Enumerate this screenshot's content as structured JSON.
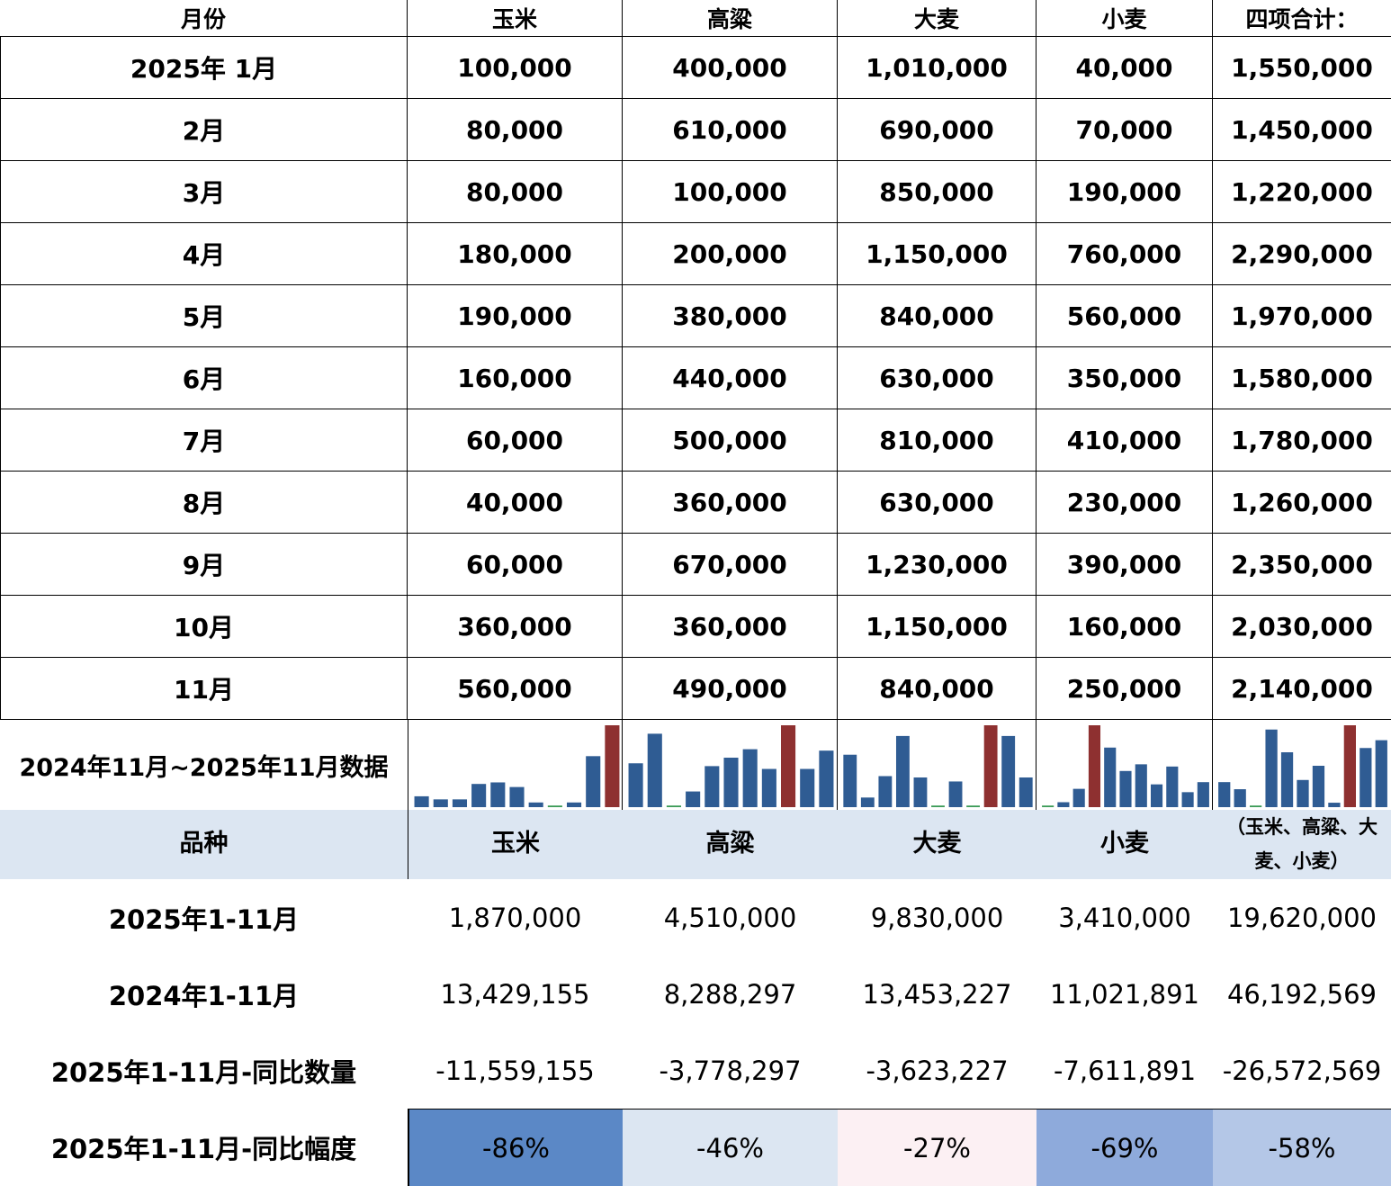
{
  "table": {
    "header": [
      "月份",
      "玉米",
      "高粱",
      "大麦",
      "小麦",
      "四项合计："
    ],
    "rows": [
      [
        "2025年 1月",
        "100,000",
        "400,000",
        "1,010,000",
        "40,000",
        "1,550,000"
      ],
      [
        "2月",
        "80,000",
        "610,000",
        "690,000",
        "70,000",
        "1,450,000"
      ],
      [
        "3月",
        "80,000",
        "100,000",
        "850,000",
        "190,000",
        "1,220,000"
      ],
      [
        "4月",
        "180,000",
        "200,000",
        "1,150,000",
        "760,000",
        "2,290,000"
      ],
      [
        "5月",
        "190,000",
        "380,000",
        "840,000",
        "560,000",
        "1,970,000"
      ],
      [
        "6月",
        "160,000",
        "440,000",
        "630,000",
        "350,000",
        "1,580,000"
      ],
      [
        "7月",
        "60,000",
        "500,000",
        "810,000",
        "410,000",
        "1,780,000"
      ],
      [
        "8月",
        "40,000",
        "360,000",
        "630,000",
        "230,000",
        "1,260,000"
      ],
      [
        "9月",
        "60,000",
        "670,000",
        "1,230,000",
        "390,000",
        "2,350,000"
      ],
      [
        "10月",
        "360,000",
        "360,000",
        "1,150,000",
        "160,000",
        "2,030,000"
      ],
      [
        "11月",
        "560,000",
        "490,000",
        "840,000",
        "250,000",
        "2,140,000"
      ]
    ],
    "sparkline_label": "2024年11月~2025年11月数据"
  },
  "summary": {
    "header": [
      "品种",
      "玉米",
      "高粱",
      "大麦",
      "小麦",
      "（玉米、高粱、大麦、小麦）"
    ],
    "rows": [
      [
        "2025年1-11月",
        "1,870,000",
        "4,510,000",
        "9,830,000",
        "3,410,000",
        "19,620,000"
      ],
      [
        "2024年1-11月",
        "13,429,155",
        "8,288,297",
        "13,453,227",
        "11,021,891",
        "46,192,569"
      ],
      [
        "2025年1-11月-同比数量",
        "-11,559,155",
        "-3,778,297",
        "-3,623,227",
        "-7,611,891",
        "-26,572,569"
      ],
      [
        "2025年1-11月-同比幅度",
        "-86%",
        "-46%",
        "-27%",
        "-69%",
        "-58%"
      ]
    ]
  }
}
